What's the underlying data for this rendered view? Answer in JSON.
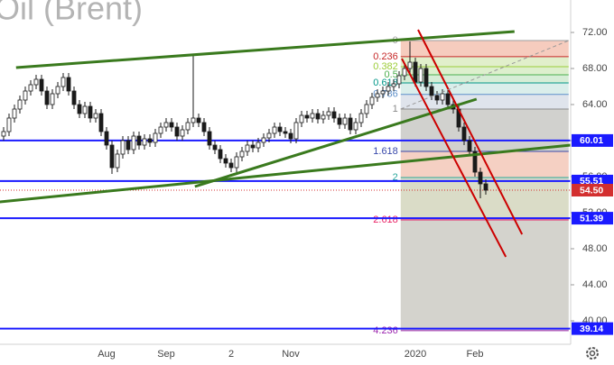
{
  "chart_data": {
    "type": "candlestick",
    "title": "Oil (Brent)",
    "categories": [
      null,
      null,
      null,
      null,
      null,
      null,
      null,
      null,
      null,
      null,
      null,
      null,
      null,
      null,
      null,
      null,
      null,
      null,
      null,
      "Aug",
      null,
      null,
      null,
      null,
      null,
      null,
      null,
      null,
      null,
      null,
      "Sep",
      null,
      null,
      null,
      null,
      null,
      null,
      null,
      null,
      null,
      null,
      null,
      "2",
      null,
      null,
      null,
      null,
      null,
      null,
      null,
      null,
      null,
      null,
      "Nov",
      null,
      null,
      null,
      null,
      null,
      null,
      null,
      null,
      null,
      null,
      null,
      null,
      null,
      null,
      null,
      null,
      null,
      null,
      null,
      null,
      null,
      null,
      "2020",
      null,
      null,
      null,
      null,
      null,
      null,
      null,
      null,
      null,
      null,
      "Feb",
      null,
      null
    ],
    "open": [
      60.5,
      61.0,
      62.5,
      63.5,
      64.5,
      65.5,
      66.2,
      66.8,
      65.5,
      64.0,
      65.2,
      66.0,
      67.0,
      65.5,
      64.0,
      63.0,
      63.8,
      62.5,
      63.0,
      61.0,
      59.5,
      57.0,
      58.5,
      60.0,
      59.0,
      60.5,
      59.5,
      60.2,
      59.8,
      60.8,
      61.5,
      62.0,
      61.5,
      60.5,
      61.2,
      62.0,
      62.5,
      62.0,
      61.0,
      59.5,
      59.0,
      58.0,
      57.5,
      57.0,
      58.2,
      58.8,
      59.5,
      59.2,
      59.8,
      60.3,
      60.8,
      61.5,
      61.0,
      60.8,
      60.2,
      62.0,
      62.8,
      62.5,
      63.0,
      62.4,
      62.8,
      63.2,
      62.5,
      61.8,
      62.5,
      61.2,
      62.0,
      63.0,
      64.0,
      64.8,
      65.2,
      65.5,
      66.0,
      66.3,
      67.2,
      68.0,
      68.7,
      66.5,
      68.0,
      66.0,
      65.0,
      64.5,
      65.2,
      64.0,
      63.5,
      61.5,
      60.0,
      58.8,
      56.5,
      55.2
    ],
    "high": [
      61.5,
      63.0,
      64.0,
      65.0,
      66.0,
      66.7,
      67.3,
      67.3,
      66.0,
      65.7,
      66.5,
      67.5,
      67.5,
      66.0,
      64.5,
      64.3,
      64.3,
      63.5,
      63.5,
      61.5,
      60.0,
      59.0,
      60.5,
      60.5,
      61.0,
      61.0,
      60.7,
      60.7,
      61.3,
      62.0,
      62.5,
      62.5,
      62.0,
      61.7,
      62.5,
      69.6,
      63.0,
      62.5,
      61.5,
      60.0,
      59.5,
      58.5,
      58.0,
      58.7,
      59.3,
      60.0,
      60.0,
      60.3,
      60.8,
      61.3,
      62.0,
      62.0,
      61.5,
      61.3,
      62.5,
      63.3,
      63.3,
      63.5,
      63.5,
      63.3,
      63.7,
      63.7,
      63.0,
      63.0,
      63.0,
      62.5,
      63.5,
      64.5,
      65.3,
      65.7,
      66.0,
      66.5,
      66.8,
      67.7,
      68.5,
      71.0,
      69.2,
      68.5,
      68.5,
      66.5,
      65.5,
      65.7,
      65.7,
      64.5,
      64.0,
      62.0,
      60.5,
      59.3,
      57.0,
      55.7
    ],
    "low": [
      60.0,
      60.5,
      62.0,
      63.0,
      64.0,
      65.0,
      65.7,
      65.0,
      63.5,
      63.5,
      64.7,
      65.5,
      65.0,
      63.5,
      62.5,
      62.5,
      62.0,
      62.0,
      60.5,
      59.0,
      56.3,
      56.5,
      58.0,
      58.5,
      58.5,
      59.0,
      59.0,
      59.3,
      59.3,
      60.3,
      61.0,
      61.0,
      60.0,
      60.0,
      60.7,
      61.5,
      61.5,
      60.5,
      59.0,
      58.5,
      57.5,
      57.0,
      56.5,
      56.5,
      57.7,
      58.3,
      58.7,
      58.7,
      59.3,
      59.8,
      60.3,
      60.5,
      60.3,
      59.7,
      59.7,
      61.5,
      62.0,
      62.0,
      61.9,
      61.9,
      62.3,
      62.0,
      61.3,
      61.3,
      60.7,
      60.7,
      61.5,
      62.5,
      63.5,
      64.3,
      64.7,
      65.0,
      65.5,
      65.8,
      66.7,
      67.5,
      66.0,
      66.0,
      65.5,
      64.5,
      64.0,
      64.0,
      63.5,
      63.0,
      61.0,
      59.5,
      58.3,
      56.0,
      53.6,
      54.0
    ],
    "close": [
      61.0,
      62.5,
      63.5,
      64.5,
      65.5,
      66.2,
      66.8,
      65.5,
      64.0,
      65.2,
      66.0,
      67.0,
      65.5,
      64.0,
      63.0,
      63.8,
      62.5,
      63.0,
      61.0,
      59.5,
      57.0,
      58.5,
      60.0,
      59.0,
      60.5,
      59.5,
      60.2,
      59.8,
      60.8,
      61.5,
      62.0,
      61.5,
      60.5,
      61.2,
      62.0,
      62.5,
      62.0,
      61.0,
      59.5,
      59.0,
      58.0,
      57.5,
      57.0,
      58.2,
      58.8,
      59.5,
      59.2,
      59.8,
      60.3,
      60.8,
      61.5,
      61.0,
      60.8,
      60.2,
      62.0,
      62.8,
      62.5,
      63.0,
      62.4,
      62.8,
      63.2,
      62.5,
      61.8,
      62.5,
      61.2,
      62.0,
      63.0,
      64.0,
      64.8,
      65.2,
      65.5,
      66.0,
      66.3,
      67.2,
      68.0,
      68.7,
      66.5,
      68.0,
      66.0,
      65.0,
      64.5,
      65.2,
      64.0,
      63.5,
      61.5,
      60.0,
      58.8,
      56.5,
      55.2,
      54.5
    ],
    "up_color": "#ffffff",
    "down_color": "#1a1a1a",
    "ylim": [
      37.6,
      75.6
    ],
    "yticks": [
      {
        "value": 40,
        "label": "40.00"
      },
      {
        "value": 44,
        "label": "44.00"
      },
      {
        "value": 48,
        "label": "48.00"
      },
      {
        "value": 52,
        "label": "52.00"
      },
      {
        "value": 56,
        "label": "56.00"
      },
      {
        "value": 60,
        "label": "60.00"
      },
      {
        "value": 64,
        "label": "64.00"
      },
      {
        "value": 68,
        "label": "68.00"
      },
      {
        "value": 72,
        "label": "72.00"
      }
    ],
    "levels": [
      60.01,
      55.51,
      51.39,
      39.14
    ],
    "level_color": "#1a1aff",
    "price_line": {
      "value": 54.5,
      "value_label": "54.50",
      "color": "#d32f2f"
    },
    "fib": {
      "start": 71.1,
      "end": 63.5,
      "x": [
        73.3,
        104.3
      ],
      "levels": [
        0,
        0.236,
        0.382,
        0.5,
        0.618,
        0.786,
        1,
        1.618,
        2,
        2.618,
        4.236
      ],
      "colors": [
        "#9e9e9e",
        "#c62828",
        "#9ccc38",
        "#4caf50",
        "#009688",
        "#5d8fc9",
        "#8a8a8a",
        "#3949ab",
        "#26a69a",
        "#e91e63",
        "#9c27b0"
      ],
      "fills": [
        "#f4c3b3",
        "#dcecc2",
        "#d7ecc4",
        "#cfeacf",
        "#d3ebe7",
        "#d9dfe9",
        "#c9c9c6",
        "#f3c8b8",
        "#d4d6bd",
        "#cccbc4"
      ]
    },
    "trendlines": [
      {
        "x": [
          2.3,
          94.3
        ],
        "y": [
          68.1,
          72.1
        ],
        "color": "#3a7a1e",
        "width": 3
      },
      {
        "x": [
          -0.7,
          104.7
        ],
        "y": [
          53.2,
          59.5
        ],
        "color": "#3a7a1e",
        "width": 3
      },
      {
        "x": [
          35.3,
          87.3
        ],
        "y": [
          54.9,
          64.6
        ],
        "color": "#3a7a1e",
        "width": 3
      },
      {
        "x": [
          76.5,
          95.7
        ],
        "y": [
          72.3,
          49.6
        ],
        "color": "#cc0000",
        "width": 2
      },
      {
        "x": [
          73.5,
          92.7
        ],
        "y": [
          69.1,
          47.1
        ],
        "color": "#cc0000",
        "width": 2
      },
      {
        "x": [
          73.3,
          104.3
        ],
        "y": [
          63.5,
          71.1
        ],
        "color": "#999999",
        "width": 1,
        "dash": true
      }
    ]
  }
}
